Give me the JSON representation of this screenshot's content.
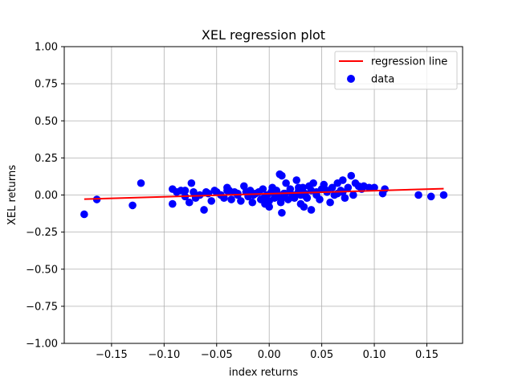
{
  "chart_data": {
    "type": "scatter",
    "title": "XEL regression plot",
    "xlabel": "index returns",
    "ylabel": "XEL returns",
    "xlim": [
      -0.195,
      0.184
    ],
    "ylim": [
      -1.0,
      1.0
    ],
    "xticks": [
      -0.15,
      -0.1,
      -0.05,
      0.0,
      0.05,
      0.1,
      0.15
    ],
    "xtick_labels": [
      "−0.15",
      "−0.10",
      "−0.05",
      "0.00",
      "0.05",
      "0.10",
      "0.15"
    ],
    "yticks": [
      -1.0,
      -0.75,
      -0.5,
      -0.25,
      0.0,
      0.25,
      0.5,
      0.75,
      1.0
    ],
    "ytick_labels": [
      "−1.00",
      "−0.75",
      "−0.50",
      "−0.25",
      "0.00",
      "0.25",
      "0.50",
      "0.75",
      "1.00"
    ],
    "grid": true,
    "legend_position": "top-right",
    "colors": {
      "data": "#0000ff",
      "line": "#ff0000"
    },
    "series": [
      {
        "name": "data",
        "kind": "scatter",
        "x": [
          -0.176,
          -0.164,
          -0.13,
          -0.122,
          -0.092,
          -0.092,
          -0.088,
          -0.084,
          -0.08,
          -0.076,
          -0.074,
          -0.072,
          -0.07,
          -0.066,
          -0.062,
          -0.058,
          -0.055,
          -0.052,
          -0.05,
          -0.046,
          -0.043,
          -0.04,
          -0.038,
          -0.036,
          -0.033,
          -0.03,
          -0.027,
          -0.024,
          -0.022,
          -0.02,
          -0.018,
          -0.016,
          -0.013,
          -0.01,
          -0.008,
          -0.006,
          -0.004,
          -0.002,
          0.0,
          0.002,
          0.003,
          0.005,
          0.007,
          0.009,
          0.01,
          0.011,
          0.012,
          0.014,
          0.016,
          0.018,
          0.02,
          0.022,
          0.024,
          0.026,
          0.028,
          0.03,
          0.032,
          0.034,
          0.036,
          0.038,
          0.04,
          0.042,
          0.045,
          0.048,
          0.05,
          0.052,
          0.055,
          0.058,
          0.06,
          0.062,
          0.065,
          0.068,
          0.07,
          0.072,
          0.075,
          0.078,
          0.08,
          0.082,
          0.085,
          0.088,
          0.09,
          0.095,
          0.1,
          0.108,
          0.11,
          0.142,
          0.154,
          0.166,
          -0.04,
          -0.03,
          -0.02,
          -0.015,
          -0.005,
          0.005,
          0.015,
          0.025,
          0.035,
          0.045,
          0.055,
          0.065,
          0.0,
          0.008,
          0.012,
          0.03,
          0.05,
          0.07,
          -0.06,
          -0.08,
          0.012,
          0.028,
          0.033,
          0.04
        ],
        "y": [
          -0.13,
          -0.03,
          -0.07,
          0.08,
          -0.06,
          0.04,
          0.02,
          0.03,
          -0.01,
          -0.05,
          0.08,
          0.02,
          -0.02,
          0.0,
          -0.1,
          0.01,
          -0.04,
          0.03,
          0.02,
          0.0,
          -0.02,
          0.05,
          0.03,
          -0.03,
          0.02,
          0.0,
          -0.04,
          0.06,
          0.02,
          -0.01,
          0.03,
          -0.05,
          0.01,
          0.02,
          -0.03,
          0.04,
          -0.06,
          0.0,
          -0.08,
          0.02,
          0.05,
          -0.02,
          0.03,
          0.0,
          0.14,
          -0.05,
          0.13,
          0.01,
          0.08,
          -0.03,
          0.04,
          0.0,
          -0.02,
          0.1,
          0.03,
          -0.06,
          0.05,
          0.01,
          -0.02,
          0.06,
          0.03,
          0.08,
          0.0,
          -0.03,
          0.04,
          0.07,
          0.02,
          -0.05,
          0.05,
          0.0,
          0.08,
          0.03,
          0.1,
          -0.02,
          0.05,
          0.13,
          0.0,
          0.08,
          0.06,
          0.04,
          0.06,
          0.05,
          0.05,
          0.01,
          0.04,
          0.0,
          -0.01,
          0.0,
          0.03,
          0.01,
          0.02,
          0.0,
          -0.02,
          0.03,
          0.01,
          0.0,
          -0.01,
          0.02,
          0.03,
          0.01,
          -0.04,
          -0.01,
          -0.12,
          0.0,
          0.04,
          0.02,
          0.02,
          0.03,
          -0.02,
          0.05,
          -0.08,
          -0.1
        ]
      },
      {
        "name": "regression line",
        "kind": "line",
        "x": [
          -0.176,
          0.166
        ],
        "y": [
          -0.028,
          0.043
        ]
      }
    ]
  }
}
